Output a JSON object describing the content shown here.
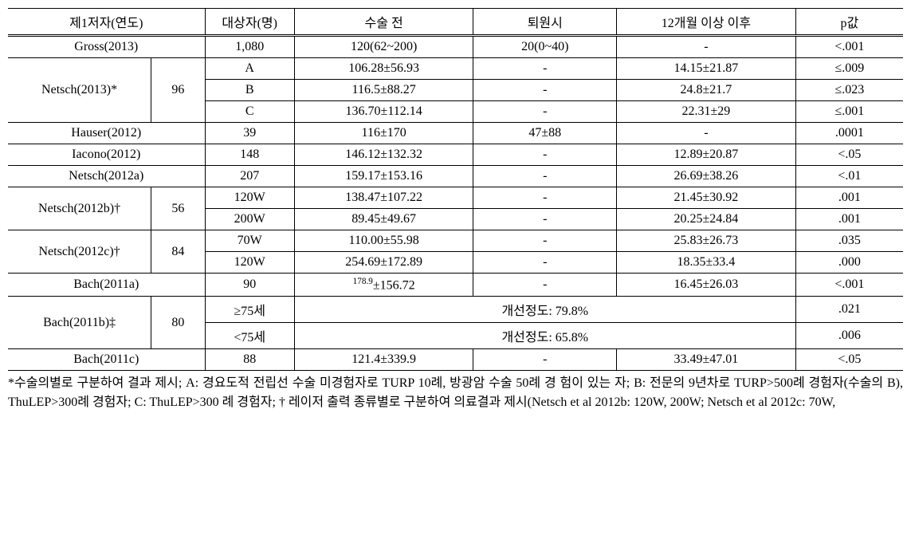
{
  "table": {
    "headers": {
      "col0": "제1저자(연도)",
      "col1": "대상자(명)",
      "col2": "수술 전",
      "col3": "퇴원시",
      "col4": "12개월 이상 이후",
      "col5": "p값"
    },
    "rows": [
      {
        "author": "Gross(2013)",
        "n": "1,080",
        "sub": "",
        "pre": "120(62~200)",
        "disch": "20(0~40)",
        "m12": "-",
        "p": "<.001"
      },
      {
        "author": "Netsch(2013)*",
        "n": "96",
        "sub": "A",
        "pre": "106.28±56.93",
        "disch": "-",
        "m12": "14.15±21.87",
        "p": "≤.009"
      },
      {
        "author": "",
        "n": "",
        "sub": "B",
        "pre": "116.5±88.27",
        "disch": "-",
        "m12": "24.8±21.7",
        "p": "≤.023"
      },
      {
        "author": "",
        "n": "",
        "sub": "C",
        "pre": "136.70±112.14",
        "disch": "-",
        "m12": "22.31±29",
        "p": "≤.001"
      },
      {
        "author": "Hauser(2012)",
        "n": "39",
        "sub": "",
        "pre": "116±170",
        "disch": "47±88",
        "m12": "-",
        "p": ".0001"
      },
      {
        "author": "Iacono(2012)",
        "n": "148",
        "sub": "",
        "pre": "146.12±132.32",
        "disch": "-",
        "m12": "12.89±20.87",
        "p": "<.05"
      },
      {
        "author": "Netsch(2012a)",
        "n": "207",
        "sub": "",
        "pre": "159.17±153.16",
        "disch": "-",
        "m12": "26.69±38.26",
        "p": "<.01"
      },
      {
        "author": "Netsch(2012b)†",
        "n": "56",
        "sub": "120W",
        "pre": "138.47±107.22",
        "disch": "-",
        "m12": "21.45±30.92",
        "p": ".001"
      },
      {
        "author": "",
        "n": "",
        "sub": "200W",
        "pre": "89.45±49.67",
        "disch": "-",
        "m12": "20.25±24.84",
        "p": ".001"
      },
      {
        "author": "Netsch(2012c)†",
        "n": "84",
        "sub": "70W",
        "pre": "110.00±55.98",
        "disch": "-",
        "m12": "25.83±26.73",
        "p": ".035"
      },
      {
        "author": "",
        "n": "",
        "sub": "120W",
        "pre": "254.69±172.89",
        "disch": "-",
        "m12": "18.35±33.4",
        "p": ".000"
      },
      {
        "author": "Bach(2011a)",
        "n": "90",
        "sub": "",
        "pre_sup": "178.9",
        "pre_rest": "±156.72",
        "disch": "-",
        "m12": "16.45±26.03",
        "p": "<.001"
      },
      {
        "author": "Bach(2011b)‡",
        "n": "80",
        "sub": "≥75세",
        "pre": "",
        "disch": "개선정도: 79.8%",
        "m12": "",
        "p": ".021"
      },
      {
        "author": "",
        "n": "",
        "sub": "<75세",
        "pre": "",
        "disch": "개선정도: 65.8%",
        "m12": "",
        "p": ".006"
      },
      {
        "author": "Bach(2011c)",
        "n": "88",
        "sub": "",
        "pre": "121.4±339.9",
        "disch": "-",
        "m12": "33.49±47.01",
        "p": "<.05"
      }
    ]
  },
  "footnote": "*수술의별로 구분하여 결과 제시; A: 경요도적 전립선 수술 미경험자로 TURP 10례, 방광암 수술 50례 경 험이 있는 자; B: 전문의 9년차로 TURP>500례 경험자(수술의 B), ThuLEP>300례 경험자; C: ThuLEP>300 례 경험자; † 레이저 출력 종류별로 구분하여 의료결과 제시(Netsch et al 2012b: 120W, 200W; Netsch et al 2012c: 70W,"
}
